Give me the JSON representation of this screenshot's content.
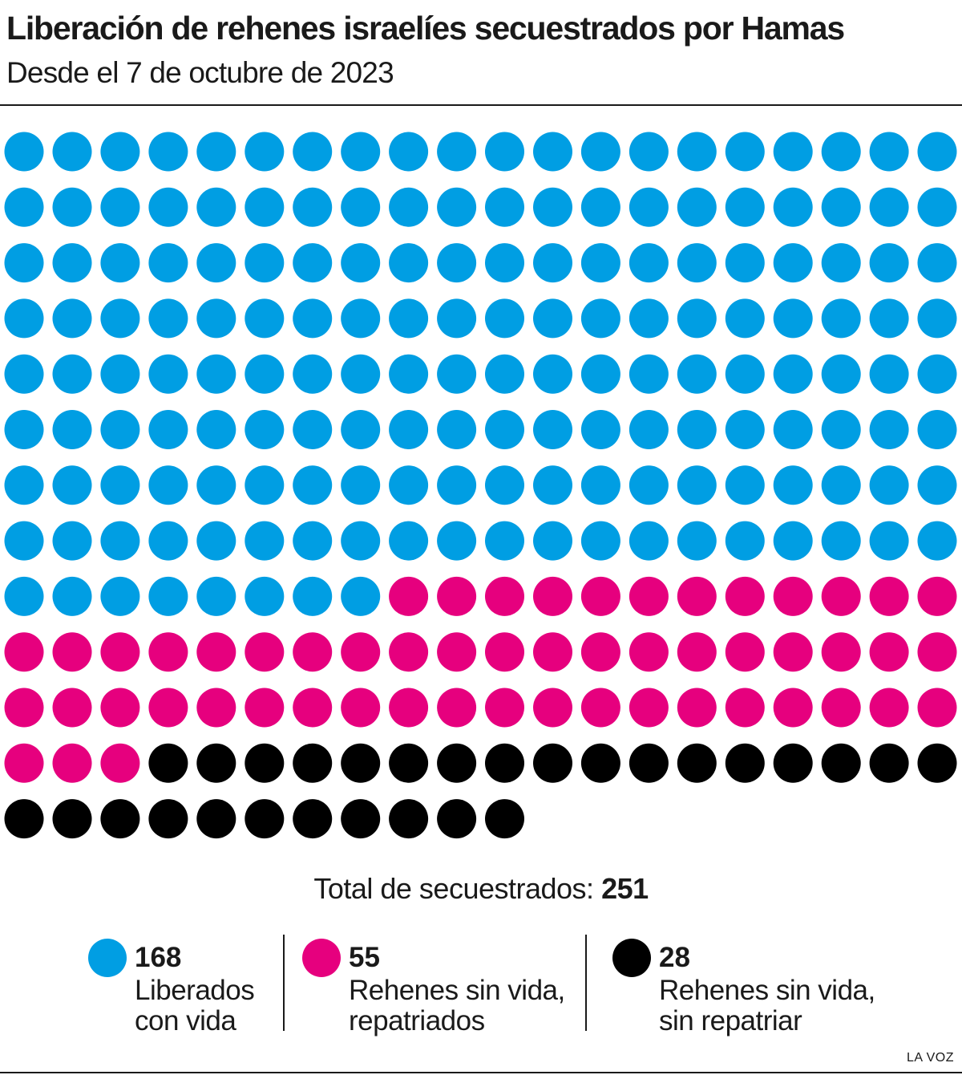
{
  "header": {
    "title": "Liberación de rehenes israelíes secuestrados por Hamas",
    "subtitle": "Desde el 7 de octubre de 2023"
  },
  "total": {
    "label": "Total de secuestrados:",
    "value": "251"
  },
  "legend": [
    {
      "value": "168",
      "line1": "Liberados",
      "line2": "con vida"
    },
    {
      "value": "55",
      "line1": "Rehenes sin vida,",
      "line2": "repatriados"
    },
    {
      "value": "28",
      "line1": "Rehenes sin vida,",
      "line2": "sin repatriar"
    }
  ],
  "credit": "LA VOZ",
  "colors": {
    "alive": "#009ee3",
    "dead_repatriated": "#e6007e",
    "dead_not_repatriated": "#000000"
  },
  "chart_data": {
    "type": "waffle",
    "columns": 20,
    "total": 251,
    "categories": [
      "Liberados con vida",
      "Rehenes sin vida, repatriados",
      "Rehenes sin vida, sin repatriar"
    ],
    "values": [
      168,
      55,
      28
    ],
    "colors": [
      "#009ee3",
      "#e6007e",
      "#000000"
    ]
  }
}
